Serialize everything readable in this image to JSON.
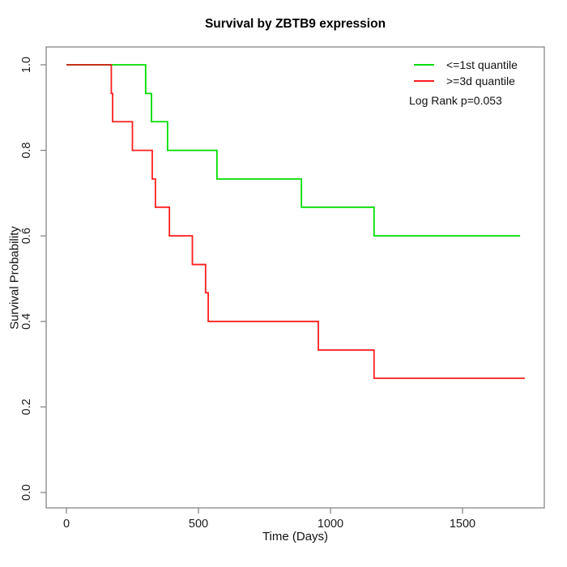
{
  "title": "Survival by ZBTB9 expression",
  "chart_data": {
    "type": "line",
    "subtype": "kaplan-meier-step",
    "title": "Survival by ZBTB9 expression",
    "xlabel": "Time (Days)",
    "ylabel": "Survival Probability",
    "xlim": [
      0,
      1740
    ],
    "ylim": [
      0,
      1
    ],
    "grid": false,
    "x_ticks": [
      0,
      500,
      1000,
      1500
    ],
    "y_tick_labels": [
      "0.0",
      "0.2",
      "0.4",
      "0.6",
      "0.8",
      "1.0"
    ],
    "legend_position": "top-right",
    "annotation": "Log Rank p=0.053",
    "legend": {
      "items": [
        {
          "label": "<=1st quantile",
          "color": "#00DD00"
        },
        {
          "label": ">=3d quantile",
          "color": "#FF1E1E"
        }
      ]
    },
    "series": [
      {
        "name": "<=1st quantile",
        "color": "#00DD00",
        "end_time": 1718,
        "points": [
          [
            0,
            1.0
          ],
          [
            300,
            0.933
          ],
          [
            322,
            0.867
          ],
          [
            383,
            0.8
          ],
          [
            570,
            0.733
          ],
          [
            890,
            0.667
          ],
          [
            1165,
            0.6
          ]
        ]
      },
      {
        "name": ">=3d quantile",
        "color": "#FF1E1E",
        "end_time": 1736,
        "points": [
          [
            0,
            1.0
          ],
          [
            170,
            0.933
          ],
          [
            175,
            0.867
          ],
          [
            250,
            0.8
          ],
          [
            325,
            0.733
          ],
          [
            337,
            0.667
          ],
          [
            390,
            0.6
          ],
          [
            477,
            0.533
          ],
          [
            527,
            0.467
          ],
          [
            537,
            0.4
          ],
          [
            954,
            0.333
          ],
          [
            1165,
            0.267
          ]
        ]
      }
    ],
    "colors": {
      "overlap_segment": "#C23018",
      "axis": "#7d7d7d",
      "tick_text": "#1a1a1a"
    }
  }
}
